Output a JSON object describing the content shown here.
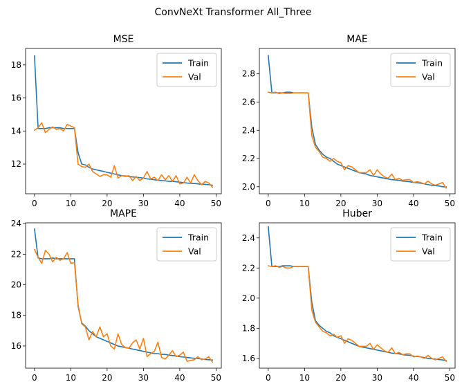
{
  "figure": {
    "title": "ConvNeXt Transformer All_Three"
  },
  "colors": {
    "train": "#1f77b4",
    "val": "#ff7f0e"
  },
  "chart_data": [
    {
      "type": "line",
      "title": "MSE",
      "xlabel": "",
      "ylabel": "",
      "xlim": [
        -2.45,
        51.45
      ],
      "ylim": [
        10.2,
        19.0
      ],
      "xticks": [
        0,
        10,
        20,
        30,
        40,
        50
      ],
      "yticks": [
        12,
        14,
        16,
        18
      ],
      "ytick_decimals": 0,
      "legend": "upper-right",
      "series": [
        {
          "name": "Train",
          "color": "#1f77b4",
          "x": [
            0,
            1,
            2,
            3,
            4,
            5,
            6,
            7,
            8,
            9,
            10,
            11,
            12,
            13,
            14,
            15,
            16,
            17,
            18,
            19,
            20,
            21,
            22,
            23,
            24,
            25,
            26,
            27,
            28,
            29,
            30,
            31,
            32,
            33,
            34,
            35,
            36,
            37,
            38,
            39,
            40,
            41,
            42,
            43,
            44,
            45,
            46,
            47,
            48,
            49
          ],
          "values": [
            18.55,
            14.15,
            14.15,
            14.15,
            14.2,
            14.2,
            14.2,
            14.2,
            14.15,
            14.15,
            14.15,
            14.15,
            12.7,
            12.0,
            11.95,
            11.8,
            11.7,
            11.65,
            11.6,
            11.55,
            11.5,
            11.45,
            11.4,
            11.35,
            11.3,
            11.28,
            11.25,
            11.22,
            11.2,
            11.18,
            11.15,
            11.1,
            11.08,
            11.05,
            11.02,
            11.0,
            10.98,
            10.95,
            10.95,
            10.93,
            10.9,
            10.88,
            10.85,
            10.83,
            10.82,
            10.8,
            10.78,
            10.77,
            10.75,
            10.72
          ]
        },
        {
          "name": "Val",
          "color": "#ff7f0e",
          "x": [
            0,
            1,
            2,
            3,
            4,
            5,
            6,
            7,
            8,
            9,
            10,
            11,
            12,
            13,
            14,
            15,
            16,
            17,
            18,
            19,
            20,
            21,
            22,
            23,
            24,
            25,
            26,
            27,
            28,
            29,
            30,
            31,
            32,
            33,
            34,
            35,
            36,
            37,
            38,
            39,
            40,
            41,
            42,
            43,
            44,
            45,
            46,
            47,
            48,
            49
          ],
          "values": [
            14.05,
            14.2,
            14.5,
            13.9,
            14.1,
            14.25,
            14.1,
            14.15,
            14.0,
            14.4,
            14.3,
            14.2,
            12.0,
            11.85,
            11.8,
            12.0,
            11.55,
            11.4,
            11.25,
            11.35,
            11.35,
            11.2,
            11.9,
            11.15,
            11.3,
            11.25,
            11.3,
            11.0,
            11.25,
            11.0,
            11.15,
            11.55,
            11.1,
            11.2,
            11.0,
            11.35,
            11.05,
            11.3,
            10.95,
            11.3,
            10.8,
            10.85,
            11.2,
            10.85,
            11.35,
            11.0,
            10.75,
            10.95,
            10.85,
            10.6
          ]
        }
      ]
    },
    {
      "type": "line",
      "title": "MAE",
      "xlabel": "",
      "ylabel": "",
      "xlim": [
        -2.45,
        51.45
      ],
      "ylim": [
        1.95,
        2.98
      ],
      "xticks": [
        0,
        10,
        20,
        30,
        40,
        50
      ],
      "yticks": [
        2.0,
        2.2,
        2.4,
        2.6,
        2.8
      ],
      "ytick_decimals": 1,
      "legend": "upper-right",
      "series": [
        {
          "name": "Train",
          "color": "#1f77b4",
          "x": [
            0,
            1,
            2,
            3,
            4,
            5,
            6,
            7,
            8,
            9,
            10,
            11,
            12,
            13,
            14,
            15,
            16,
            17,
            18,
            19,
            20,
            21,
            22,
            23,
            24,
            25,
            26,
            27,
            28,
            29,
            30,
            31,
            32,
            33,
            34,
            35,
            36,
            37,
            38,
            39,
            40,
            41,
            42,
            43,
            44,
            45,
            46,
            47,
            48,
            49
          ],
          "values": [
            2.93,
            2.665,
            2.665,
            2.665,
            2.665,
            2.67,
            2.67,
            2.665,
            2.665,
            2.665,
            2.665,
            2.665,
            2.42,
            2.3,
            2.26,
            2.23,
            2.21,
            2.2,
            2.18,
            2.16,
            2.15,
            2.14,
            2.13,
            2.12,
            2.11,
            2.1,
            2.095,
            2.09,
            2.08,
            2.075,
            2.07,
            2.065,
            2.06,
            2.055,
            2.05,
            2.048,
            2.045,
            2.04,
            2.038,
            2.035,
            2.03,
            2.028,
            2.025,
            2.02,
            2.015,
            2.01,
            2.008,
            2.005,
            2.0,
            1.998
          ]
        },
        {
          "name": "Val",
          "color": "#ff7f0e",
          "x": [
            0,
            1,
            2,
            3,
            4,
            5,
            6,
            7,
            8,
            9,
            10,
            11,
            12,
            13,
            14,
            15,
            16,
            17,
            18,
            19,
            20,
            21,
            22,
            23,
            24,
            25,
            26,
            27,
            28,
            29,
            30,
            31,
            32,
            33,
            34,
            35,
            36,
            37,
            38,
            39,
            40,
            41,
            42,
            43,
            44,
            45,
            46,
            47,
            48,
            49
          ],
          "values": [
            2.67,
            2.665,
            2.67,
            2.66,
            2.665,
            2.66,
            2.66,
            2.665,
            2.665,
            2.665,
            2.665,
            2.665,
            2.36,
            2.28,
            2.25,
            2.21,
            2.2,
            2.18,
            2.2,
            2.18,
            2.17,
            2.12,
            2.15,
            2.14,
            2.12,
            2.1,
            2.1,
            2.1,
            2.12,
            2.08,
            2.12,
            2.09,
            2.07,
            2.06,
            2.09,
            2.05,
            2.06,
            2.045,
            2.05,
            2.05,
            2.03,
            2.035,
            2.03,
            2.02,
            2.04,
            2.02,
            2.01,
            2.02,
            2.03,
            1.99
          ]
        }
      ]
    },
    {
      "type": "line",
      "title": "MAPE",
      "xlabel": "",
      "ylabel": "",
      "xlim": [
        -2.45,
        51.45
      ],
      "ylim": [
        14.55,
        24.05
      ],
      "xticks": [
        0,
        10,
        20,
        30,
        40,
        50
      ],
      "yticks": [
        16,
        18,
        20,
        22,
        24
      ],
      "ytick_decimals": 0,
      "legend": "upper-right",
      "series": [
        {
          "name": "Train",
          "color": "#1f77b4",
          "x": [
            0,
            1,
            2,
            3,
            4,
            5,
            6,
            7,
            8,
            9,
            10,
            11,
            12,
            13,
            14,
            15,
            16,
            17,
            18,
            19,
            20,
            21,
            22,
            23,
            24,
            25,
            26,
            27,
            28,
            29,
            30,
            31,
            32,
            33,
            34,
            35,
            36,
            37,
            38,
            39,
            40,
            41,
            42,
            43,
            44,
            45,
            46,
            47,
            48,
            49
          ],
          "values": [
            23.65,
            21.75,
            21.7,
            21.7,
            21.7,
            21.75,
            21.7,
            21.7,
            21.7,
            21.7,
            21.7,
            21.7,
            18.6,
            17.5,
            17.3,
            17.0,
            16.8,
            16.6,
            16.5,
            16.4,
            16.3,
            16.2,
            16.1,
            16.0,
            15.95,
            15.9,
            15.85,
            15.8,
            15.75,
            15.7,
            15.65,
            15.6,
            15.55,
            15.5,
            15.5,
            15.45,
            15.45,
            15.4,
            15.38,
            15.35,
            15.3,
            15.28,
            15.25,
            15.22,
            15.2,
            15.18,
            15.15,
            15.12,
            15.1,
            15.08
          ]
        },
        {
          "name": "Val",
          "color": "#ff7f0e",
          "x": [
            0,
            1,
            2,
            3,
            4,
            5,
            6,
            7,
            8,
            9,
            10,
            11,
            12,
            13,
            14,
            15,
            16,
            17,
            18,
            19,
            20,
            21,
            22,
            23,
            24,
            25,
            26,
            27,
            28,
            29,
            30,
            31,
            32,
            33,
            34,
            35,
            36,
            37,
            38,
            39,
            40,
            41,
            42,
            43,
            44,
            45,
            46,
            47,
            48,
            49
          ],
          "values": [
            22.3,
            21.8,
            21.4,
            22.25,
            22.0,
            21.5,
            21.8,
            21.6,
            21.7,
            22.1,
            21.4,
            21.45,
            18.7,
            17.45,
            17.25,
            16.4,
            16.95,
            16.6,
            17.25,
            16.6,
            16.8,
            16.0,
            15.8,
            16.8,
            16.1,
            15.9,
            15.85,
            16.2,
            16.4,
            15.8,
            16.5,
            15.3,
            15.5,
            15.65,
            16.25,
            15.25,
            15.15,
            15.4,
            15.7,
            15.3,
            15.4,
            15.6,
            15.0,
            15.05,
            15.1,
            15.3,
            15.1,
            15.15,
            15.3,
            14.95
          ]
        }
      ]
    },
    {
      "type": "line",
      "title": "Huber",
      "xlabel": "",
      "ylabel": "",
      "xlim": [
        -2.45,
        51.45
      ],
      "ylim": [
        1.535,
        2.5
      ],
      "xticks": [
        0,
        10,
        20,
        30,
        40,
        50
      ],
      "yticks": [
        1.6,
        1.8,
        2.0,
        2.2,
        2.4
      ],
      "ytick_decimals": 1,
      "legend": "upper-right",
      "series": [
        {
          "name": "Train",
          "color": "#1f77b4",
          "x": [
            0,
            1,
            2,
            3,
            4,
            5,
            6,
            7,
            8,
            9,
            10,
            11,
            12,
            13,
            14,
            15,
            16,
            17,
            18,
            19,
            20,
            21,
            22,
            23,
            24,
            25,
            26,
            27,
            28,
            29,
            30,
            31,
            32,
            33,
            34,
            35,
            36,
            37,
            38,
            39,
            40,
            41,
            42,
            43,
            44,
            45,
            46,
            47,
            48,
            49
          ],
          "values": [
            2.475,
            2.21,
            2.21,
            2.21,
            2.215,
            2.215,
            2.215,
            2.21,
            2.21,
            2.21,
            2.21,
            2.21,
            1.97,
            1.85,
            1.82,
            1.8,
            1.78,
            1.77,
            1.75,
            1.74,
            1.73,
            1.72,
            1.71,
            1.7,
            1.69,
            1.68,
            1.675,
            1.67,
            1.665,
            1.66,
            1.655,
            1.65,
            1.645,
            1.64,
            1.635,
            1.632,
            1.63,
            1.625,
            1.622,
            1.62,
            1.615,
            1.612,
            1.61,
            1.605,
            1.6,
            1.598,
            1.595,
            1.592,
            1.59,
            1.585
          ]
        },
        {
          "name": "Val",
          "color": "#ff7f0e",
          "x": [
            0,
            1,
            2,
            3,
            4,
            5,
            6,
            7,
            8,
            9,
            10,
            11,
            12,
            13,
            14,
            15,
            16,
            17,
            18,
            19,
            20,
            21,
            22,
            23,
            24,
            25,
            26,
            27,
            28,
            29,
            30,
            31,
            32,
            33,
            34,
            35,
            36,
            37,
            38,
            39,
            40,
            41,
            42,
            43,
            44,
            45,
            46,
            47,
            48,
            49
          ],
          "values": [
            2.215,
            2.21,
            2.215,
            2.205,
            2.21,
            2.2,
            2.2,
            2.21,
            2.21,
            2.21,
            2.21,
            2.21,
            1.92,
            1.84,
            1.81,
            1.78,
            1.77,
            1.75,
            1.76,
            1.74,
            1.75,
            1.7,
            1.73,
            1.72,
            1.7,
            1.68,
            1.68,
            1.68,
            1.7,
            1.66,
            1.69,
            1.67,
            1.65,
            1.64,
            1.67,
            1.63,
            1.64,
            1.625,
            1.63,
            1.63,
            1.61,
            1.615,
            1.61,
            1.6,
            1.62,
            1.6,
            1.59,
            1.6,
            1.61,
            1.58
          ]
        }
      ]
    }
  ]
}
